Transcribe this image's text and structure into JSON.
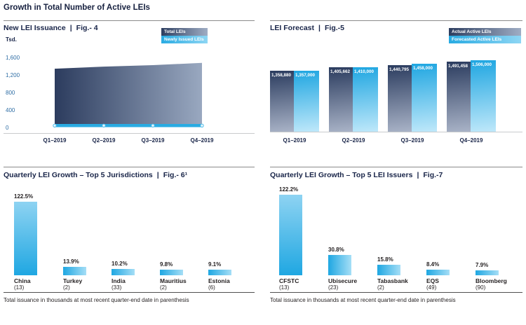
{
  "page_title": "Growth in Total Number of Active LEIs",
  "title_divider": "|",
  "colors": {
    "accent_blue": "#29abe2",
    "dark_slate": "#2e3e61",
    "slate_light": "#a6b0c5",
    "navy_text": "#182448",
    "axis_blue": "#2e6da4",
    "label_ink": "#231f20"
  },
  "chart_data": [
    {
      "id": "fig4",
      "type": "area",
      "title": "New LEI Issuance",
      "fig_label": "Fig.- 4",
      "ylabel": "Tsd.",
      "legend": [
        "Total LEIs",
        "Newly Issued LEIs"
      ],
      "x": [
        "Q1–2019",
        "Q2–2019",
        "Q3–2019",
        "Q4–2019"
      ],
      "yticks": [
        "1,600",
        "1,200",
        "800",
        "400",
        "0"
      ],
      "ylim": [
        0,
        1600
      ],
      "series": [
        {
          "name": "Total LEIs",
          "style": "area",
          "values_tsd": [
            1358.9,
            1405.7,
            1440.8,
            1491.5
          ]
        },
        {
          "name": "Newly Issued LEIs",
          "style": "line",
          "values_tsd": [
            60,
            60,
            60,
            60
          ]
        }
      ]
    },
    {
      "id": "fig5",
      "type": "bar",
      "title": "LEI Forecast",
      "fig_label": "Fig.-5",
      "x": [
        "Q1–2019",
        "Q2–2019",
        "Q3–2019",
        "Q4–2019"
      ],
      "legend": [
        "Actual Active LEIs",
        "Forecasted Active LEIs"
      ],
      "series": [
        {
          "name": "Actual Active LEIs",
          "values": [
            1358880,
            1405662,
            1440795,
            1491458
          ]
        },
        {
          "name": "Forecasted Active LEIs",
          "values": [
            1357000,
            1410000,
            1458000,
            1506000
          ]
        }
      ]
    },
    {
      "id": "fig6",
      "type": "bar",
      "title": "Quarterly LEI Growth – Top 5 Jurisdictions",
      "fig_label": "Fig.- 6¹",
      "categories": [
        "China",
        "Turkey",
        "India",
        "Mauritius",
        "Estonia"
      ],
      "counts": [
        "(13)",
        "(2)",
        "(33)",
        "(2)",
        "(6)"
      ],
      "values_pct": [
        122.5,
        13.9,
        10.2,
        9.8,
        9.1
      ],
      "footnote": "Total issuance in thousands at most recent quarter-end date in parenthesis"
    },
    {
      "id": "fig7",
      "type": "bar",
      "title": "Quarterly LEI Growth – Top 5 LEI Issuers",
      "fig_label": "Fig.-7",
      "categories": [
        "CFSTC",
        "Ubisecure",
        "Tabasbank",
        "EQS",
        "Bloomberg"
      ],
      "counts": [
        "(13)",
        "(23)",
        "(2)",
        "(49)",
        "(90)"
      ],
      "values_pct": [
        122.2,
        30.8,
        15.8,
        8.4,
        7.9
      ],
      "footnote": "Total issuance in thousands at most recent quarter-end date in parenthesis"
    }
  ]
}
